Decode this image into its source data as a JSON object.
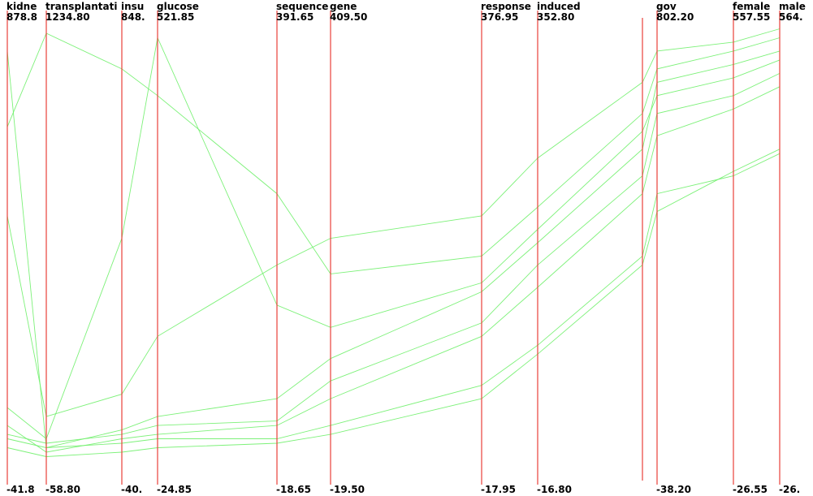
{
  "chart_data": {
    "type": "parallel-coordinates",
    "title": "",
    "grid": false,
    "line_color": "#6ff06a",
    "axis_color": "#e8403a",
    "axes": [
      {
        "name": "kidne",
        "max_label": "878.8",
        "min_label": "-41.8",
        "max": 878.8,
        "min": -41.8
      },
      {
        "name": "transplantati",
        "max_label": "1234.80",
        "min_label": "-58.80",
        "max": 1234.8,
        "min": -58.8
      },
      {
        "name": "insu",
        "max_label": "848.",
        "min_label": "-40.",
        "max": 848,
        "min": -40
      },
      {
        "name": "glucose",
        "max_label": "521.85",
        "min_label": "-24.85",
        "max": 521.85,
        "min": -24.85
      },
      {
        "name": "sequence",
        "max_label": "391.65",
        "min_label": "-18.65",
        "max": 391.65,
        "min": -18.65
      },
      {
        "name": "gene",
        "max_label": "409.50",
        "min_label": "-19.50",
        "max": 409.5,
        "min": -19.5
      },
      {
        "name": "response",
        "max_label": "376.95",
        "min_label": "-17.95",
        "max": 376.95,
        "min": -17.95
      },
      {
        "name": "induced",
        "max_label": "352.80",
        "min_label": "-16.80",
        "max": 352.8,
        "min": -16.8
      },
      {
        "name": "",
        "max_label": "",
        "min_label": "",
        "max": 1,
        "min": 0
      },
      {
        "name": "gov",
        "max_label": "802.20",
        "min_label": "-38.20",
        "max": 802.2,
        "min": -38.2
      },
      {
        "name": "female",
        "max_label": "557.55",
        "min_label": "-26.55",
        "max": 557.55,
        "min": -26.55
      },
      {
        "name": "male",
        "max_label": "564.",
        "min_label": "-26.",
        "max": 564,
        "min": -26
      }
    ],
    "series": [
      {
        "values": [
          0.92,
          0.03,
          0.07,
          0.1,
          0.14,
          0.23,
          0.38,
          0.49,
          0.7,
          0.85,
          0.89,
          0.92
        ]
      },
      {
        "values": [
          0.08,
          0.02,
          0.05,
          0.06,
          0.08,
          0.14,
          0.28,
          0.39,
          0.6,
          0.73,
          0.79,
          0.84
        ]
      },
      {
        "values": [
          0.75,
          0.96,
          0.88,
          0.82,
          0.6,
          0.42,
          0.46,
          0.57,
          0.78,
          0.88,
          0.92,
          0.95
        ]
      },
      {
        "values": [
          0.05,
          0.03,
          0.04,
          0.05,
          0.05,
          0.08,
          0.17,
          0.26,
          0.46,
          0.6,
          0.64,
          0.69
        ]
      },
      {
        "values": [
          0.12,
          0.05,
          0.5,
          0.95,
          0.35,
          0.3,
          0.4,
          0.52,
          0.74,
          0.82,
          0.86,
          0.9
        ]
      },
      {
        "values": [
          0.03,
          0.01,
          0.02,
          0.03,
          0.04,
          0.06,
          0.14,
          0.24,
          0.44,
          0.56,
          0.65,
          0.7
        ]
      },
      {
        "values": [
          0.55,
          0.1,
          0.15,
          0.28,
          0.44,
          0.5,
          0.55,
          0.68,
          0.85,
          0.92,
          0.94,
          0.97
        ]
      },
      {
        "values": [
          0.06,
          0.04,
          0.06,
          0.08,
          0.09,
          0.18,
          0.31,
          0.44,
          0.64,
          0.78,
          0.82,
          0.87
        ]
      }
    ]
  }
}
